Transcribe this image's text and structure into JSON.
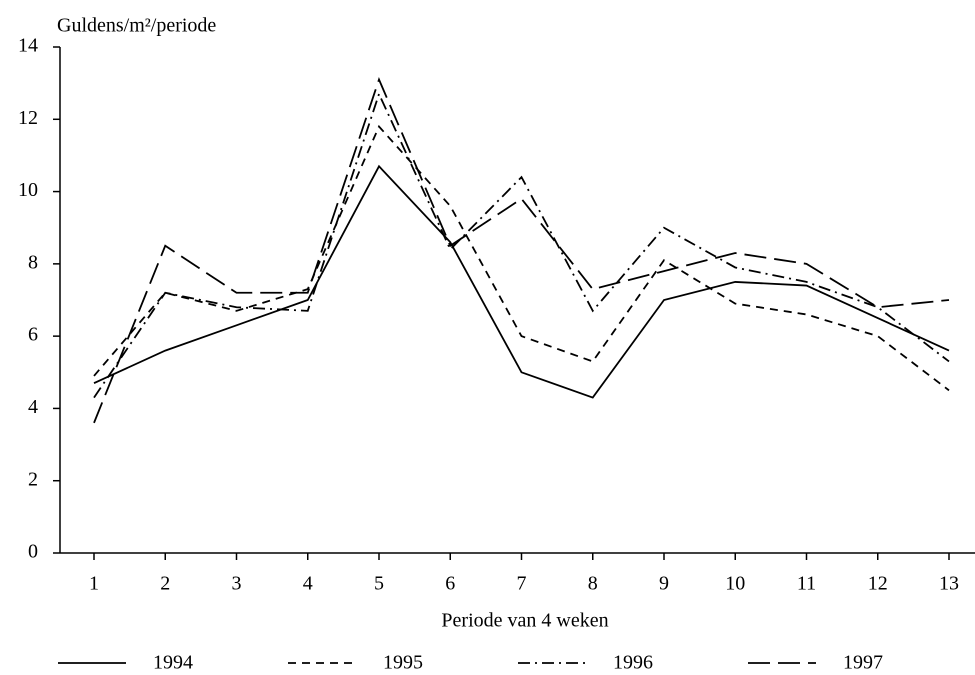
{
  "chart_data": {
    "type": "line",
    "y_label": "Guldens/m²/periode",
    "x_label": "Periode van 4 weken",
    "categories": [
      "1",
      "2",
      "3",
      "4",
      "5",
      "6",
      "7",
      "8",
      "9",
      "10",
      "11",
      "12",
      "13"
    ],
    "ylim": [
      0,
      14
    ],
    "yticks": [
      0,
      2,
      4,
      6,
      8,
      10,
      12,
      14
    ],
    "legend": "bottom",
    "series": [
      {
        "name": "1994",
        "color": "#000000",
        "dash": "solid",
        "values": [
          4.7,
          5.6,
          6.3,
          7.0,
          10.7,
          8.6,
          5.0,
          4.3,
          7.0,
          7.5,
          7.4,
          6.5,
          5.6
        ]
      },
      {
        "name": "1995",
        "color": "#000000",
        "dash": "short",
        "values": [
          4.9,
          7.2,
          6.7,
          7.3,
          11.8,
          9.6,
          6.0,
          5.3,
          8.1,
          6.9,
          6.6,
          6.0,
          4.5
        ]
      },
      {
        "name": "1996",
        "color": "#000000",
        "dash": "dashdot",
        "values": [
          4.3,
          7.2,
          6.8,
          6.7,
          12.7,
          8.4,
          10.4,
          6.7,
          9.0,
          7.9,
          7.5,
          6.8,
          5.3
        ]
      },
      {
        "name": "1997",
        "color": "#000000",
        "dash": "long",
        "values": [
          3.6,
          8.5,
          7.2,
          7.2,
          13.1,
          8.5,
          9.8,
          7.3,
          7.8,
          8.3,
          8.0,
          6.8,
          7.0
        ]
      }
    ]
  }
}
